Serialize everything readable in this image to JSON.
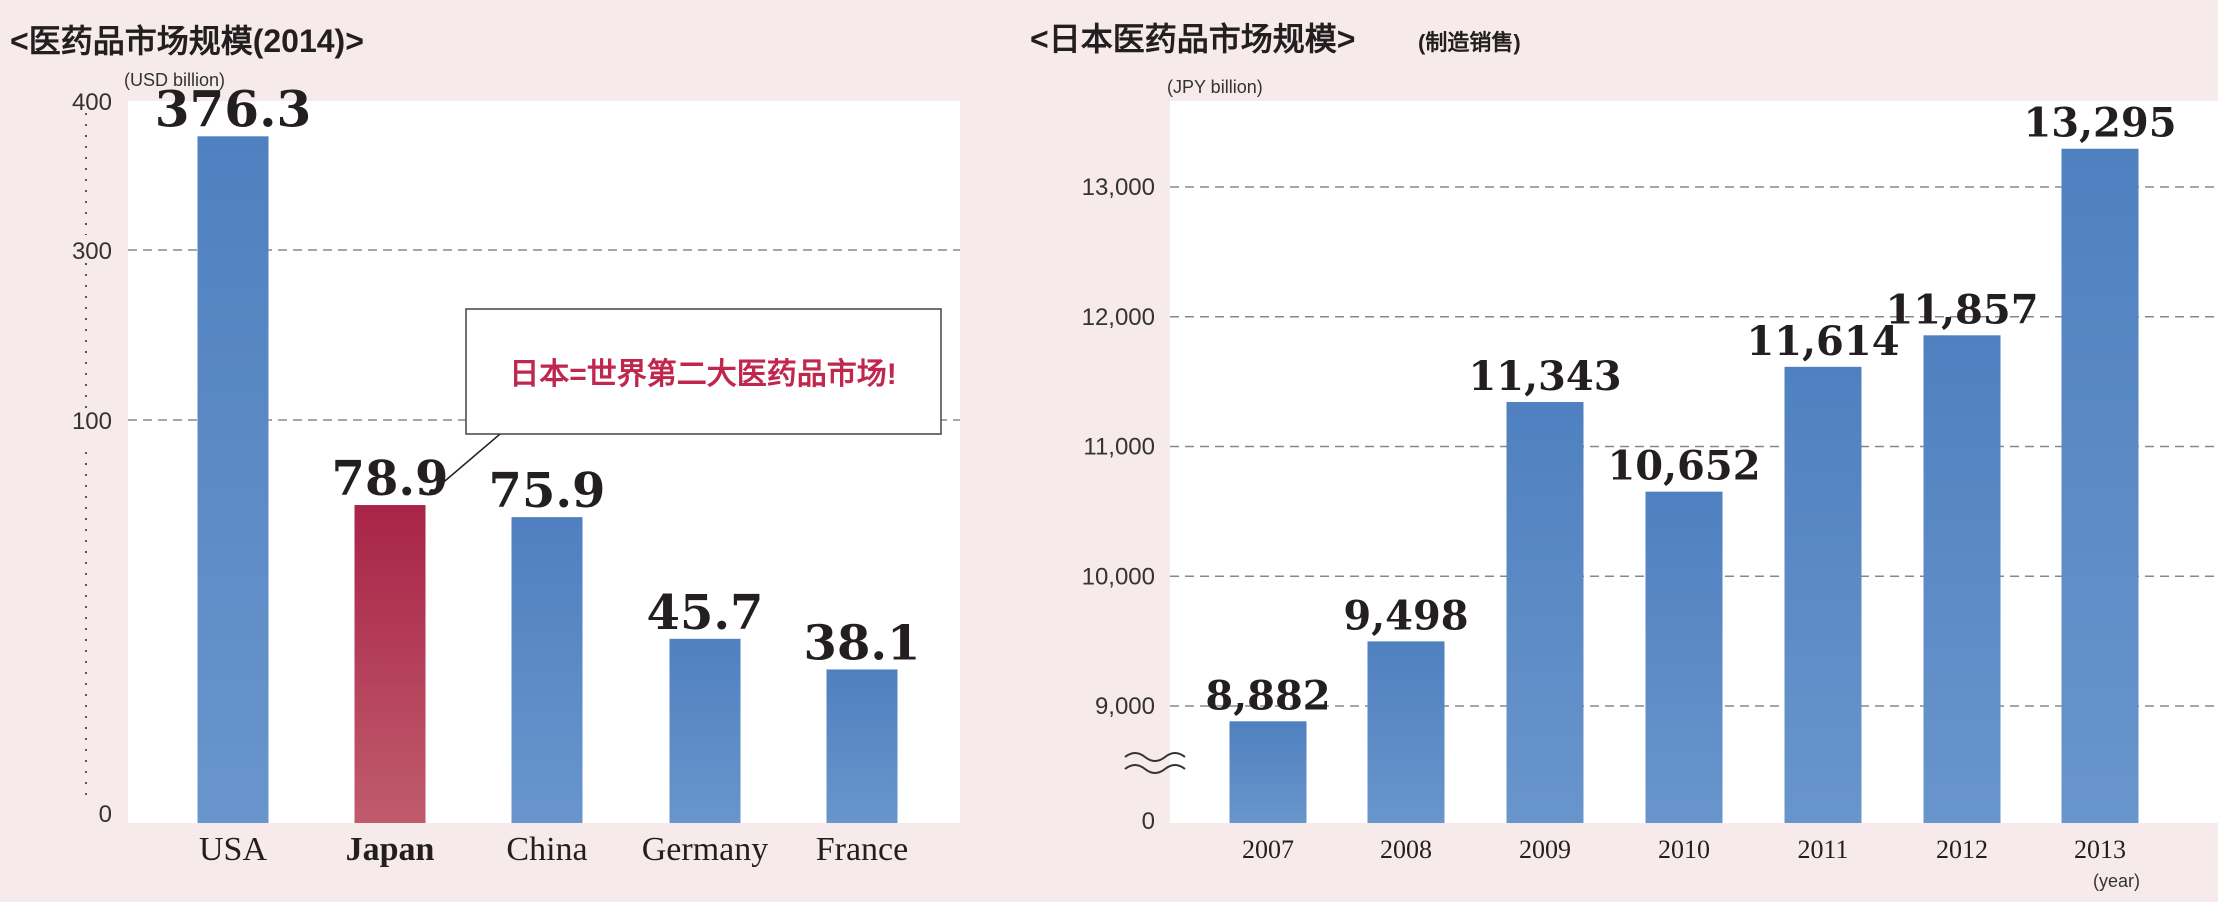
{
  "charts": {
    "left": {
      "title": "<医药品市场规模(2014)>",
      "unit": "(USD billion)",
      "callout": "日本=世界第二大医药品市场!"
    },
    "right": {
      "title": "<日本医药品市场规模>",
      "subtitle": "(制造销售)",
      "unit": "(JPY billion)",
      "xunit": "(year)"
    }
  },
  "colors": {
    "background": "#f7eaea",
    "plot_bg": "#ffffff",
    "bar_blue": "#5585c0",
    "bar_red": "#b0304e",
    "grid": "#888888"
  },
  "chart_data": [
    {
      "type": "bar",
      "title": "<医药品市场规模(2014)>",
      "ylabel": "(USD billion)",
      "categories": [
        "USA",
        "Japan",
        "China",
        "Germany",
        "France"
      ],
      "values": [
        376.3,
        78.9,
        75.9,
        45.7,
        38.1
      ],
      "value_labels": [
        "376.3",
        "78.9",
        "75.9",
        "45.7",
        "38.1"
      ],
      "highlight": "Japan",
      "yticks": [
        "0",
        "100",
        "300",
        "400"
      ],
      "yaxis_break": "between 100 and 300",
      "grid": "dashed horizontal at 100 and 300"
    },
    {
      "type": "bar",
      "title": "<日本医药品市场规模>",
      "subtitle": "(制造销售)",
      "ylabel": "(JPY billion)",
      "xlabel": "(year)",
      "categories": [
        "2007",
        "2008",
        "2009",
        "2010",
        "2011",
        "2012",
        "2013"
      ],
      "values": [
        8882,
        9498,
        11343,
        10652,
        11614,
        11857,
        13295
      ],
      "value_labels": [
        "8,882",
        "9,498",
        "11,343",
        "10,652",
        "11,614",
        "11,857",
        "13,295"
      ],
      "yticks": [
        "0",
        "9,000",
        "10,000",
        "11,000",
        "12,000",
        "13,000"
      ],
      "ylim": [
        8650,
        13650
      ],
      "yaxis_break": "between 0 and 9,000",
      "grid": "dashed horizontal"
    }
  ]
}
